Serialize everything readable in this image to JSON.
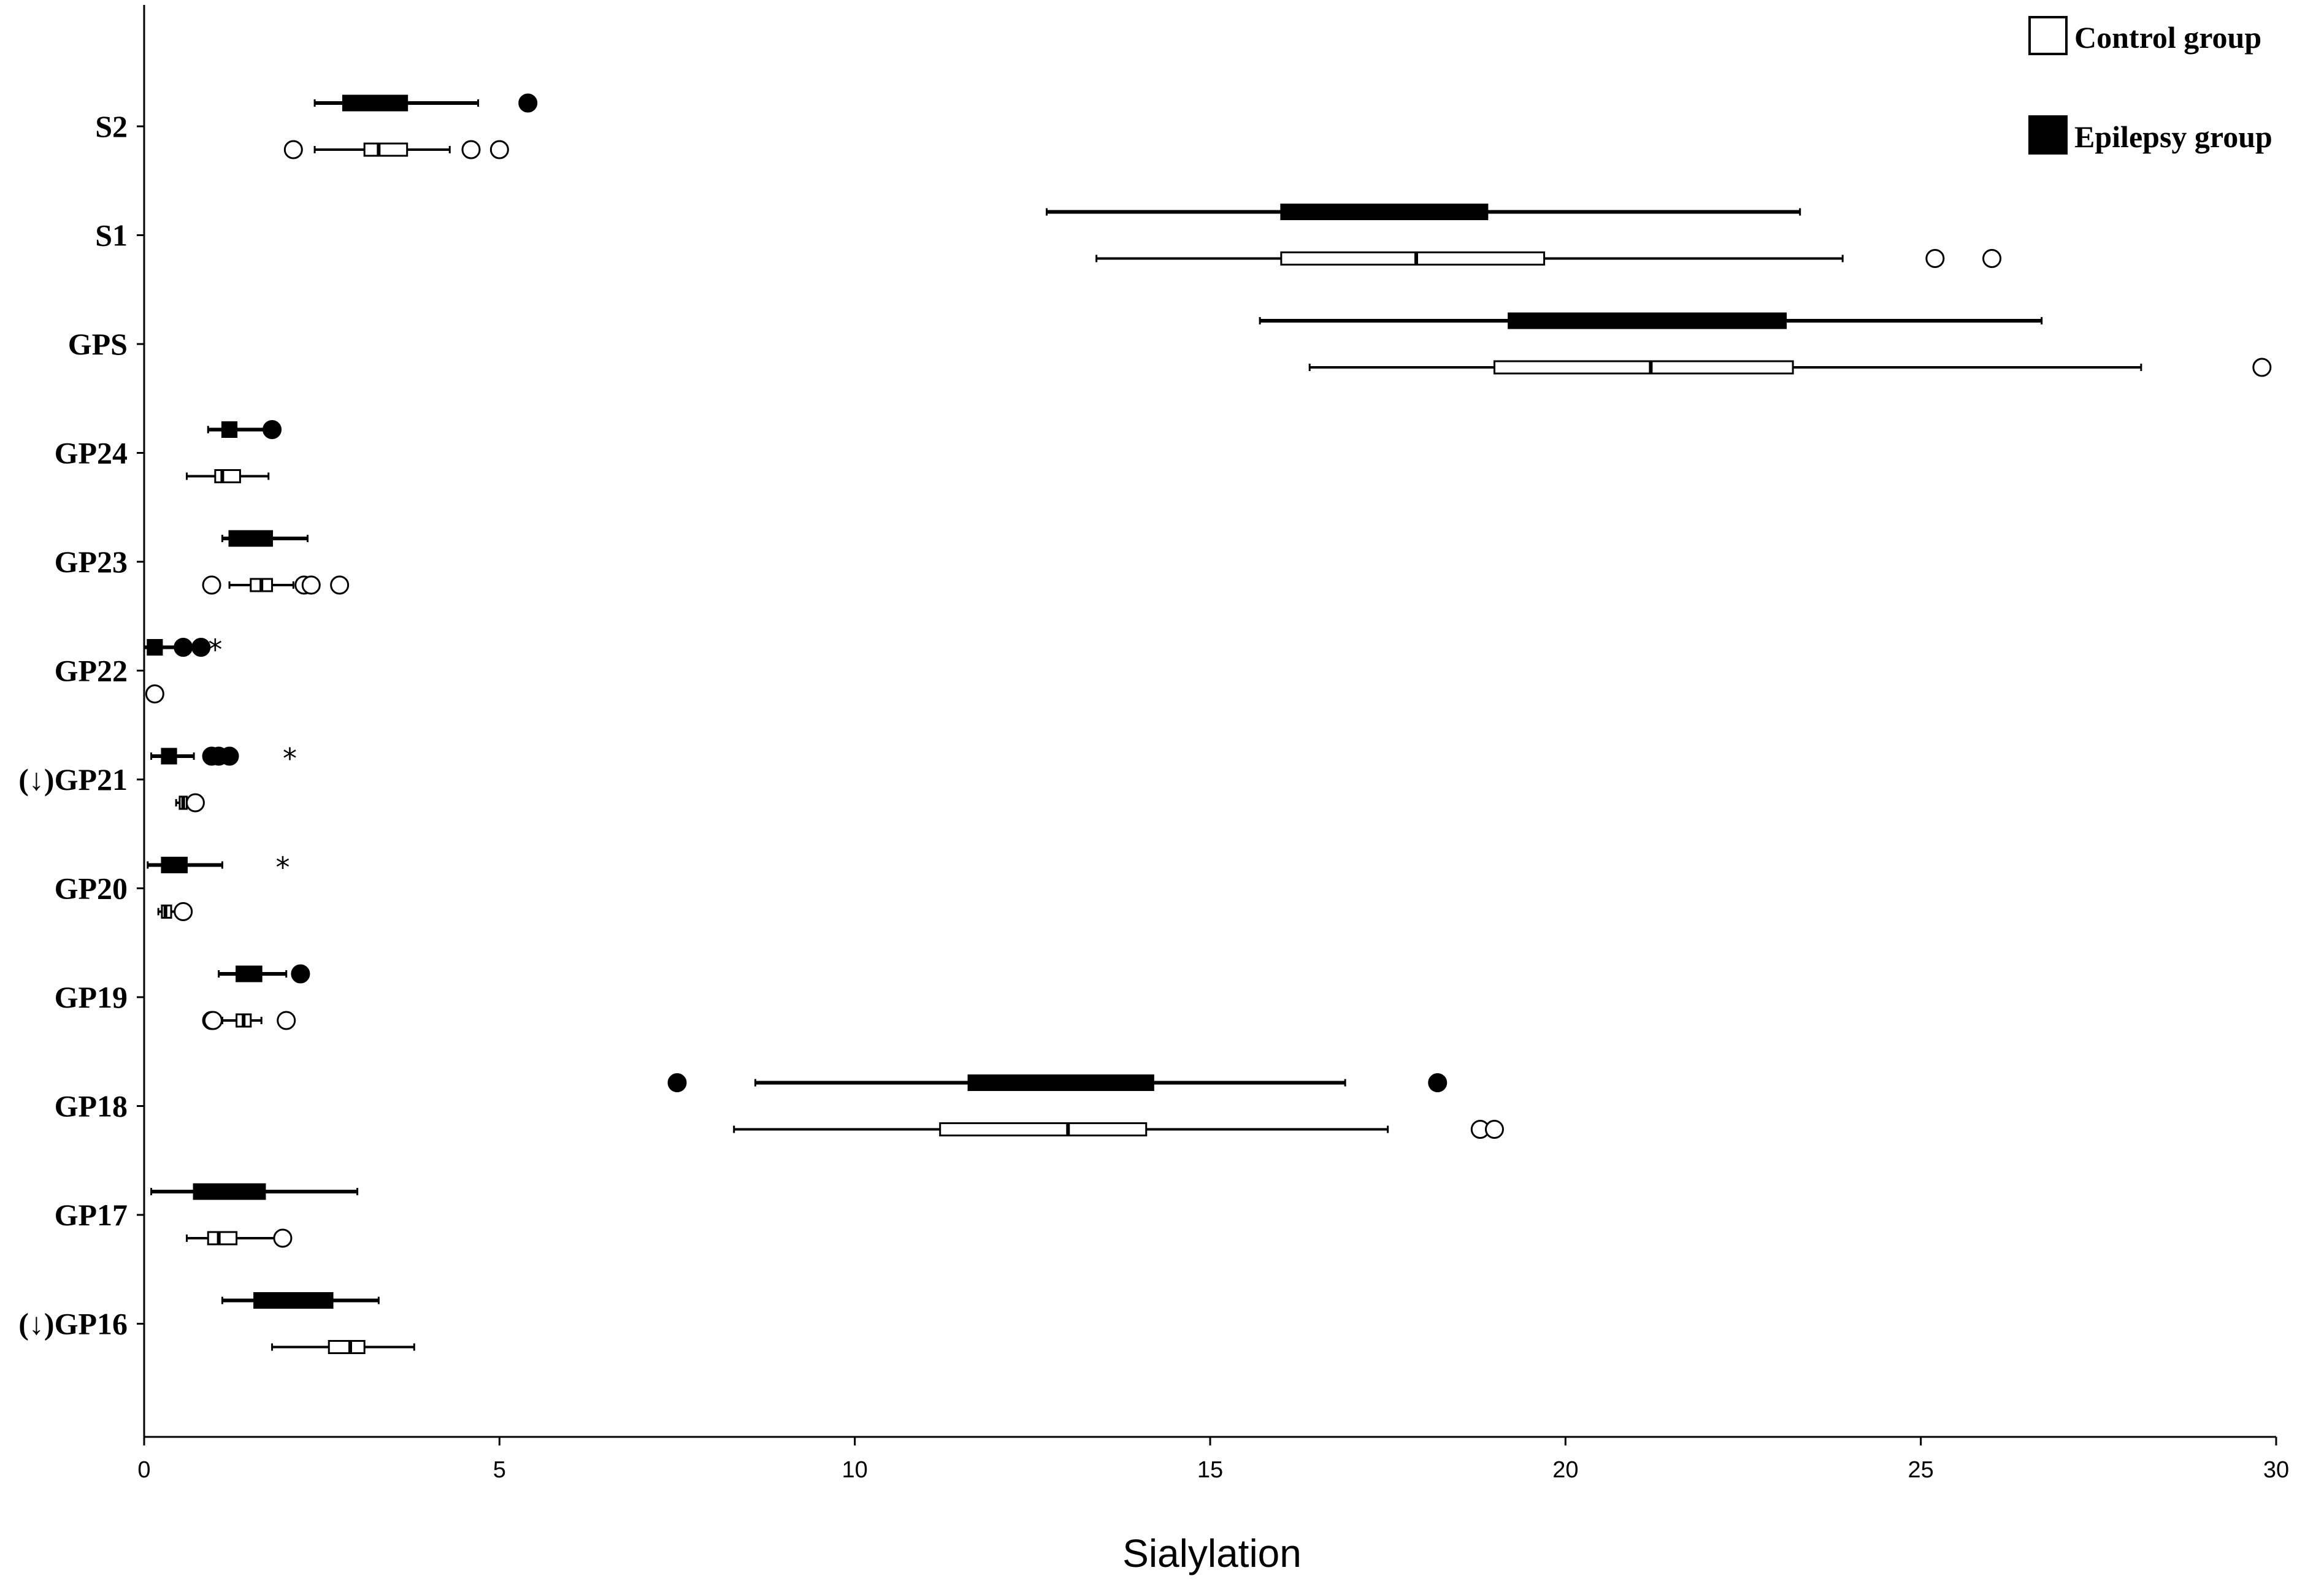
{
  "chart_data": {
    "type": "boxplot",
    "orientation": "horizontal",
    "xlabel": "Sialylation",
    "xlim": [
      0,
      30
    ],
    "xticks": [
      0,
      5,
      10,
      15,
      20,
      25,
      30
    ],
    "grid": false,
    "legend_position": "top-right",
    "legend": [
      {
        "label": "Control group",
        "fill": "#ffffff"
      },
      {
        "label": "Epilepsy group",
        "fill": "#000000"
      }
    ],
    "categories": [
      "S2",
      "S1",
      "GPS",
      "GP24",
      "GP23",
      "GP22",
      "(↓)GP21",
      "GP20",
      "GP19",
      "GP18",
      "GP17",
      "(↓)GP16"
    ],
    "series": [
      {
        "name": "Epilepsy group",
        "boxes": [
          {
            "min": 2.4,
            "q1": 2.8,
            "median": 3.2,
            "q3": 3.7,
            "max": 4.7,
            "outliers": [
              5.4
            ],
            "extremes": []
          },
          {
            "min": 12.7,
            "q1": 16.0,
            "median": 17.5,
            "q3": 18.9,
            "max": 23.3,
            "outliers": [],
            "extremes": []
          },
          {
            "min": 15.7,
            "q1": 19.2,
            "median": 21.0,
            "q3": 23.1,
            "max": 26.7,
            "outliers": [],
            "extremes": []
          },
          {
            "min": 0.9,
            "q1": 1.1,
            "median": 1.2,
            "q3": 1.3,
            "max": 1.7,
            "outliers": [
              1.8
            ],
            "extremes": []
          },
          {
            "min": 1.1,
            "q1": 1.2,
            "median": 1.4,
            "q3": 1.8,
            "max": 2.3,
            "outliers": [],
            "extremes": []
          },
          {
            "min": 0.0,
            "q1": 0.05,
            "median": 0.15,
            "q3": 0.25,
            "max": 0.5,
            "outliers": [
              0.55,
              0.8
            ],
            "extremes": [
              1.0
            ]
          },
          {
            "min": 0.1,
            "q1": 0.25,
            "median": 0.3,
            "q3": 0.45,
            "max": 0.7,
            "outliers": [
              0.95,
              1.05,
              1.2
            ],
            "extremes": [
              2.05
            ]
          },
          {
            "min": 0.05,
            "q1": 0.25,
            "median": 0.4,
            "q3": 0.6,
            "max": 1.1,
            "outliers": [],
            "extremes": [
              1.95
            ]
          },
          {
            "min": 1.05,
            "q1": 1.3,
            "median": 1.45,
            "q3": 1.65,
            "max": 2.0,
            "outliers": [
              2.2
            ],
            "extremes": []
          },
          {
            "min": 8.6,
            "q1": 11.6,
            "median": 12.5,
            "q3": 14.2,
            "max": 16.9,
            "outliers": [
              7.5,
              18.2
            ],
            "extremes": []
          },
          {
            "min": 0.1,
            "q1": 0.7,
            "median": 1.1,
            "q3": 1.7,
            "max": 3.0,
            "outliers": [],
            "extremes": []
          },
          {
            "min": 1.1,
            "q1": 1.55,
            "median": 2.1,
            "q3": 2.65,
            "max": 3.3,
            "outliers": [],
            "extremes": []
          }
        ]
      },
      {
        "name": "Control group",
        "boxes": [
          {
            "min": 2.4,
            "q1": 3.1,
            "median": 3.3,
            "q3": 3.7,
            "max": 4.3,
            "outliers": [
              2.1,
              4.6,
              5.0
            ],
            "extremes": []
          },
          {
            "min": 13.4,
            "q1": 16.0,
            "median": 17.9,
            "q3": 19.7,
            "max": 23.9,
            "outliers": [
              25.2,
              26.0
            ],
            "extremes": []
          },
          {
            "min": 16.4,
            "q1": 19.0,
            "median": 21.2,
            "q3": 23.2,
            "max": 28.1,
            "outliers": [
              29.8
            ],
            "extremes": []
          },
          {
            "min": 0.6,
            "q1": 1.0,
            "median": 1.1,
            "q3": 1.35,
            "max": 1.75,
            "outliers": [],
            "extremes": []
          },
          {
            "min": 1.2,
            "q1": 1.5,
            "median": 1.65,
            "q3": 1.8,
            "max": 2.1,
            "outliers": [
              0.95,
              2.25,
              2.35,
              2.75
            ],
            "extremes": []
          },
          {
            "min": 0.1,
            "q1": 0.12,
            "median": 0.14,
            "q3": 0.16,
            "max": 0.18,
            "outliers": [
              0.15
            ],
            "extremes": []
          },
          {
            "min": 0.45,
            "q1": 0.5,
            "median": 0.55,
            "q3": 0.6,
            "max": 0.65,
            "outliers": [
              0.72
            ],
            "extremes": []
          },
          {
            "min": 0.2,
            "q1": 0.25,
            "median": 0.3,
            "q3": 0.38,
            "max": 0.45,
            "outliers": [
              0.55
            ],
            "extremes": []
          },
          {
            "min": 1.1,
            "q1": 1.3,
            "median": 1.4,
            "q3": 1.5,
            "max": 1.65,
            "outliers": [
              0.95,
              0.97,
              2.0
            ],
            "extremes": []
          },
          {
            "min": 8.3,
            "q1": 11.2,
            "median": 13.0,
            "q3": 14.1,
            "max": 17.5,
            "outliers": [
              18.8,
              19.0
            ],
            "extremes": []
          },
          {
            "min": 0.6,
            "q1": 0.9,
            "median": 1.05,
            "q3": 1.3,
            "max": 1.9,
            "outliers": [
              1.95
            ],
            "extremes": []
          },
          {
            "min": 1.8,
            "q1": 2.6,
            "median": 2.9,
            "q3": 3.1,
            "max": 3.8,
            "outliers": [],
            "extremes": []
          }
        ]
      }
    ]
  }
}
